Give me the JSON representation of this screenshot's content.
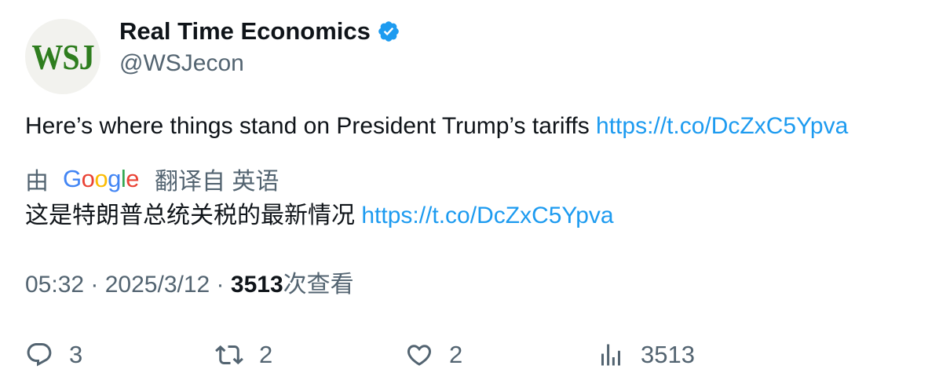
{
  "author": {
    "avatar_text": "WSJ",
    "display_name": "Real Time Economics",
    "handle": "@WSJecon",
    "verified": true
  },
  "tweet": {
    "text": "Here’s where things stand on President Trump’s tariffs ",
    "link": "https://t.co/DcZxC5Ypva"
  },
  "translation": {
    "prefix": "由",
    "provider_logo": [
      "G",
      "o",
      "o",
      "g",
      "l",
      "e"
    ],
    "action_label": "翻译自 英语",
    "text": "这是特朗普总统关税的最新情况 ",
    "link": "https://t.co/DcZxC5Ypva"
  },
  "meta": {
    "time": "05:32",
    "separator": " · ",
    "date": "2025/3/12",
    "views_count": "3513",
    "views_suffix": "次查看"
  },
  "actions": {
    "replies": "3",
    "retweets": "2",
    "likes": "2",
    "views": "3513"
  },
  "colors": {
    "link": "#1d9bf0",
    "secondary_text": "#536471",
    "primary_text": "#0f1419",
    "verified_badge": "#1d9bf0",
    "google_blue": "#4285f4",
    "google_red": "#ea4335",
    "google_yellow": "#fbbc05",
    "google_green": "#34a853"
  },
  "icons": {
    "reply": "reply-icon",
    "retweet": "retweet-icon",
    "like": "heart-icon",
    "analytics": "analytics-icon",
    "verified": "verified-badge-icon"
  }
}
